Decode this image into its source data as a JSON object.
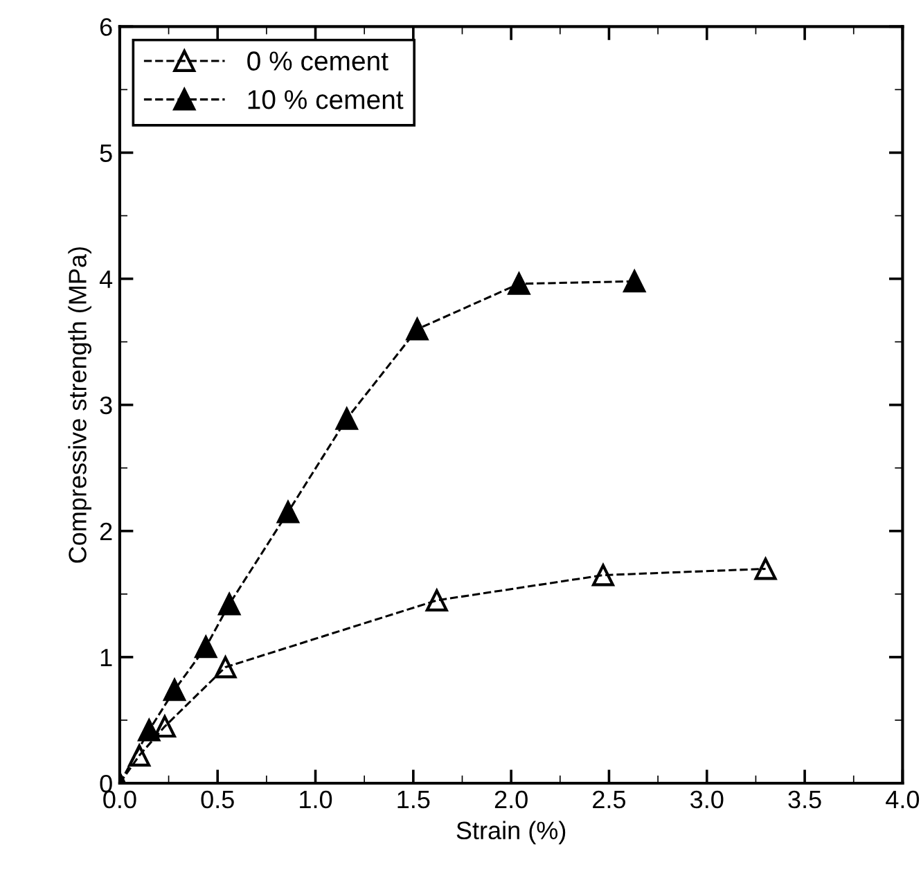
{
  "chart_data": {
    "type": "line",
    "xlabel": "Strain (%)",
    "ylabel": "Compressive strength (MPa)",
    "xlim": [
      0,
      4
    ],
    "xticks": [
      {
        "value": 0,
        "label": "0.0"
      },
      {
        "value": 0.5,
        "label": "0.5"
      },
      {
        "value": 1,
        "label": "1.0"
      },
      {
        "value": 1.5,
        "label": "1.5"
      },
      {
        "value": 2,
        "label": "2.0"
      },
      {
        "value": 2.5,
        "label": "2.5"
      },
      {
        "value": 3,
        "label": "3.0"
      },
      {
        "value": 3.5,
        "label": "3.5"
      },
      {
        "value": 4,
        "label": "4.0"
      }
    ],
    "ylim": [
      0,
      6
    ],
    "yticks": [
      0,
      1,
      2,
      3,
      4,
      5,
      6
    ],
    "legend": "top left",
    "marker": "triangle",
    "line_style": "dashed",
    "grid": false,
    "series": [
      {
        "name": "0 % cement",
        "color": "#000000",
        "x": [
          0,
          0.1,
          0.23,
          0.54,
          1.62,
          2.47,
          3.3
        ],
        "values": [
          0,
          0.22,
          0.45,
          0.92,
          1.45,
          1.65,
          1.7
        ]
      },
      {
        "name": "10 % cement",
        "color": "#000000",
        "x": [
          0,
          0.15,
          0.28,
          0.44,
          0.56,
          0.86,
          1.16,
          1.52,
          2.04,
          2.63
        ],
        "values": [
          0,
          0.42,
          0.74,
          1.08,
          1.42,
          2.15,
          2.89,
          3.6,
          3.96,
          3.98
        ]
      }
    ]
  }
}
